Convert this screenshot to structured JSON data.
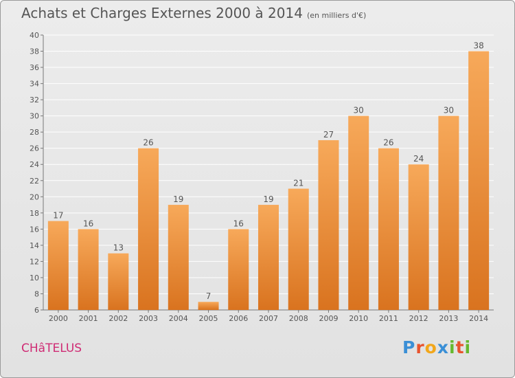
{
  "header": {
    "title": "Achats et Charges Externes 2000 à 2014",
    "subtitle": "(en milliers d'€)"
  },
  "footer": {
    "commune": "CHâTELUS",
    "logo_letters": [
      "P",
      "r",
      "o",
      "x",
      "i",
      "t",
      "i"
    ]
  },
  "colors": {
    "bar_top": "#f7a95a",
    "bar_bottom": "#d9731f",
    "grid": "#ffffff",
    "text": "#555555",
    "commune": "#cf2b74",
    "logo": [
      "#3a8fd6",
      "#e8542e",
      "#f2a71b",
      "#3a8fd6",
      "#66b82e",
      "#e8542e",
      "#66b82e"
    ]
  },
  "chart_data": {
    "type": "bar",
    "categories": [
      "2000",
      "2001",
      "2002",
      "2003",
      "2004",
      "2005",
      "2006",
      "2007",
      "2008",
      "2009",
      "2010",
      "2011",
      "2012",
      "2013",
      "2014"
    ],
    "values": [
      17,
      16,
      13,
      26,
      19,
      7,
      16,
      19,
      21,
      27,
      30,
      26,
      24,
      30,
      38
    ],
    "data_labels": [
      "17",
      "16",
      "13",
      "26",
      "19",
      "7",
      "16",
      "19",
      "21",
      "27",
      "30",
      "26",
      "24",
      "30",
      "38"
    ],
    "ylim": [
      6,
      40
    ],
    "yticks": [
      6,
      8,
      10,
      12,
      14,
      16,
      18,
      20,
      22,
      24,
      26,
      28,
      30,
      32,
      34,
      36,
      38,
      40
    ],
    "grid": true,
    "xlabel": "",
    "ylabel": ""
  }
}
